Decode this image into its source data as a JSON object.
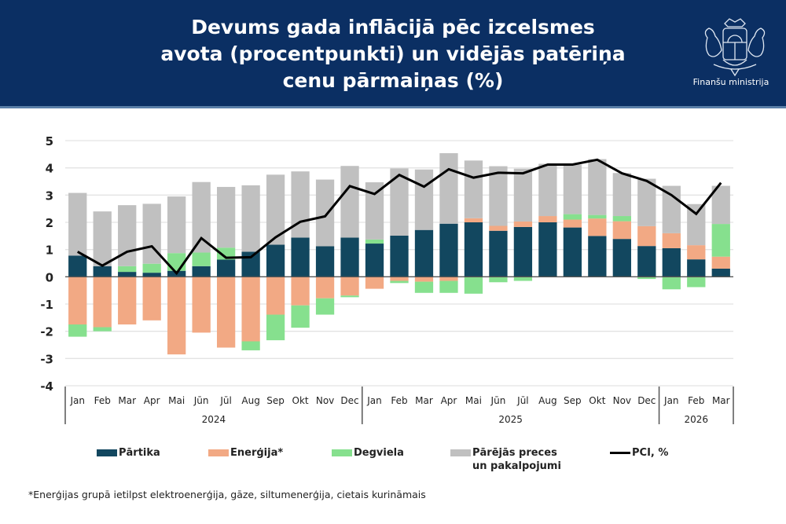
{
  "header": {
    "title_lines": [
      "Devums gada inflācijā pēc izcelsmes",
      "avota (procentpunkti) un vidējās patēriņa",
      "cenu pārmaiņas (%)"
    ],
    "logo_caption": "Finanšu ministrija",
    "background_color": "#0b2f63"
  },
  "legend": {
    "items": [
      {
        "label": "Pārtika",
        "color": "#12475f",
        "kind": "bar"
      },
      {
        "label": "Enerģija*",
        "color": "#f2a984",
        "kind": "bar"
      },
      {
        "label": "Degviela",
        "color": "#86e08e",
        "kind": "bar"
      },
      {
        "label": "Pārējās preces",
        "label2": "un pakalpojumi",
        "color": "#c0c0c0",
        "kind": "bar"
      },
      {
        "label": "PCI, %",
        "color": "#000000",
        "kind": "line"
      }
    ]
  },
  "footnote": "*Enerģijas grupā ietilpst elektroenerģija, gāze, siltumenerģija, cietais kurināmais",
  "chart_data": {
    "type": "bar",
    "stacked": true,
    "title": "Devums gada inflācijā pēc izcelsmes avota (procentpunkti) un vidējās patēriņa cenu pārmaiņas (%)",
    "xlabel": "",
    "ylabel": "",
    "ylim": [
      -4,
      5
    ],
    "yticks": [
      5,
      4,
      3,
      2,
      1,
      0,
      -1,
      -2,
      -3,
      -4
    ],
    "grid": true,
    "legend_position": "bottom",
    "categories": [
      "Jan",
      "Feb",
      "Mar",
      "Apr",
      "Mai",
      "Jūn",
      "Jūl",
      "Aug",
      "Sep",
      "Okt",
      "Nov",
      "Dec",
      "Jan",
      "Feb",
      "Mar",
      "Apr",
      "Mai",
      "Jūn",
      "Jūl",
      "Aug",
      "Sep",
      "Okt",
      "Nov",
      "Dec",
      "Jan",
      "Feb",
      "Mar"
    ],
    "year_groups": [
      {
        "label": "2024",
        "count": 12
      },
      {
        "label": "2025",
        "count": 12
      },
      {
        "label": "2026",
        "count": 3
      }
    ],
    "series": [
      {
        "name": "Pārtika",
        "color": "#12475f",
        "values": [
          0.78,
          0.39,
          0.18,
          0.15,
          0.22,
          0.39,
          0.63,
          0.92,
          1.18,
          1.44,
          1.12,
          1.44,
          1.22,
          1.51,
          1.72,
          1.95,
          2.0,
          1.69,
          1.83,
          2.0,
          1.81,
          1.5,
          1.39,
          1.13,
          1.05,
          0.64,
          0.3
        ]
      },
      {
        "name": "Enerģija*",
        "color": "#f2a984",
        "values": [
          -1.75,
          -1.85,
          -1.75,
          -1.6,
          -2.85,
          -2.05,
          -2.6,
          -2.37,
          -1.39,
          -1.05,
          -0.79,
          -0.69,
          -0.44,
          -0.15,
          -0.18,
          -0.15,
          0.15,
          0.18,
          0.2,
          0.23,
          0.29,
          0.64,
          0.65,
          0.73,
          0.55,
          0.52,
          0.44
        ]
      },
      {
        "name": "Degviela",
        "color": "#86e08e",
        "values": [
          -0.45,
          -0.15,
          0.21,
          0.33,
          0.65,
          0.5,
          0.44,
          -0.33,
          -0.94,
          -0.82,
          -0.6,
          -0.06,
          0.15,
          -0.08,
          -0.41,
          -0.44,
          -0.62,
          -0.2,
          -0.15,
          0.0,
          0.2,
          0.13,
          0.19,
          -0.08,
          -0.46,
          -0.38,
          1.2
        ]
      },
      {
        "name": "Pārējās preces un pakalpojumi",
        "color": "#c0c0c0",
        "values": [
          2.3,
          2.01,
          2.24,
          2.2,
          2.08,
          2.59,
          2.23,
          2.44,
          2.57,
          2.43,
          2.45,
          2.63,
          2.1,
          2.47,
          2.22,
          2.59,
          2.12,
          2.19,
          1.94,
          1.92,
          1.82,
          2.05,
          1.58,
          1.74,
          1.74,
          1.51,
          1.4
        ]
      }
    ],
    "line_series": {
      "name": "PCI, %",
      "color": "#000000",
      "values": [
        0.92,
        0.41,
        0.92,
        1.12,
        0.13,
        1.42,
        0.7,
        0.72,
        1.45,
        2.02,
        2.22,
        3.33,
        3.04,
        3.74,
        3.31,
        3.95,
        3.64,
        3.82,
        3.8,
        4.12,
        4.12,
        4.3,
        3.8,
        3.52,
        3.0,
        2.31,
        3.45
      ]
    }
  }
}
